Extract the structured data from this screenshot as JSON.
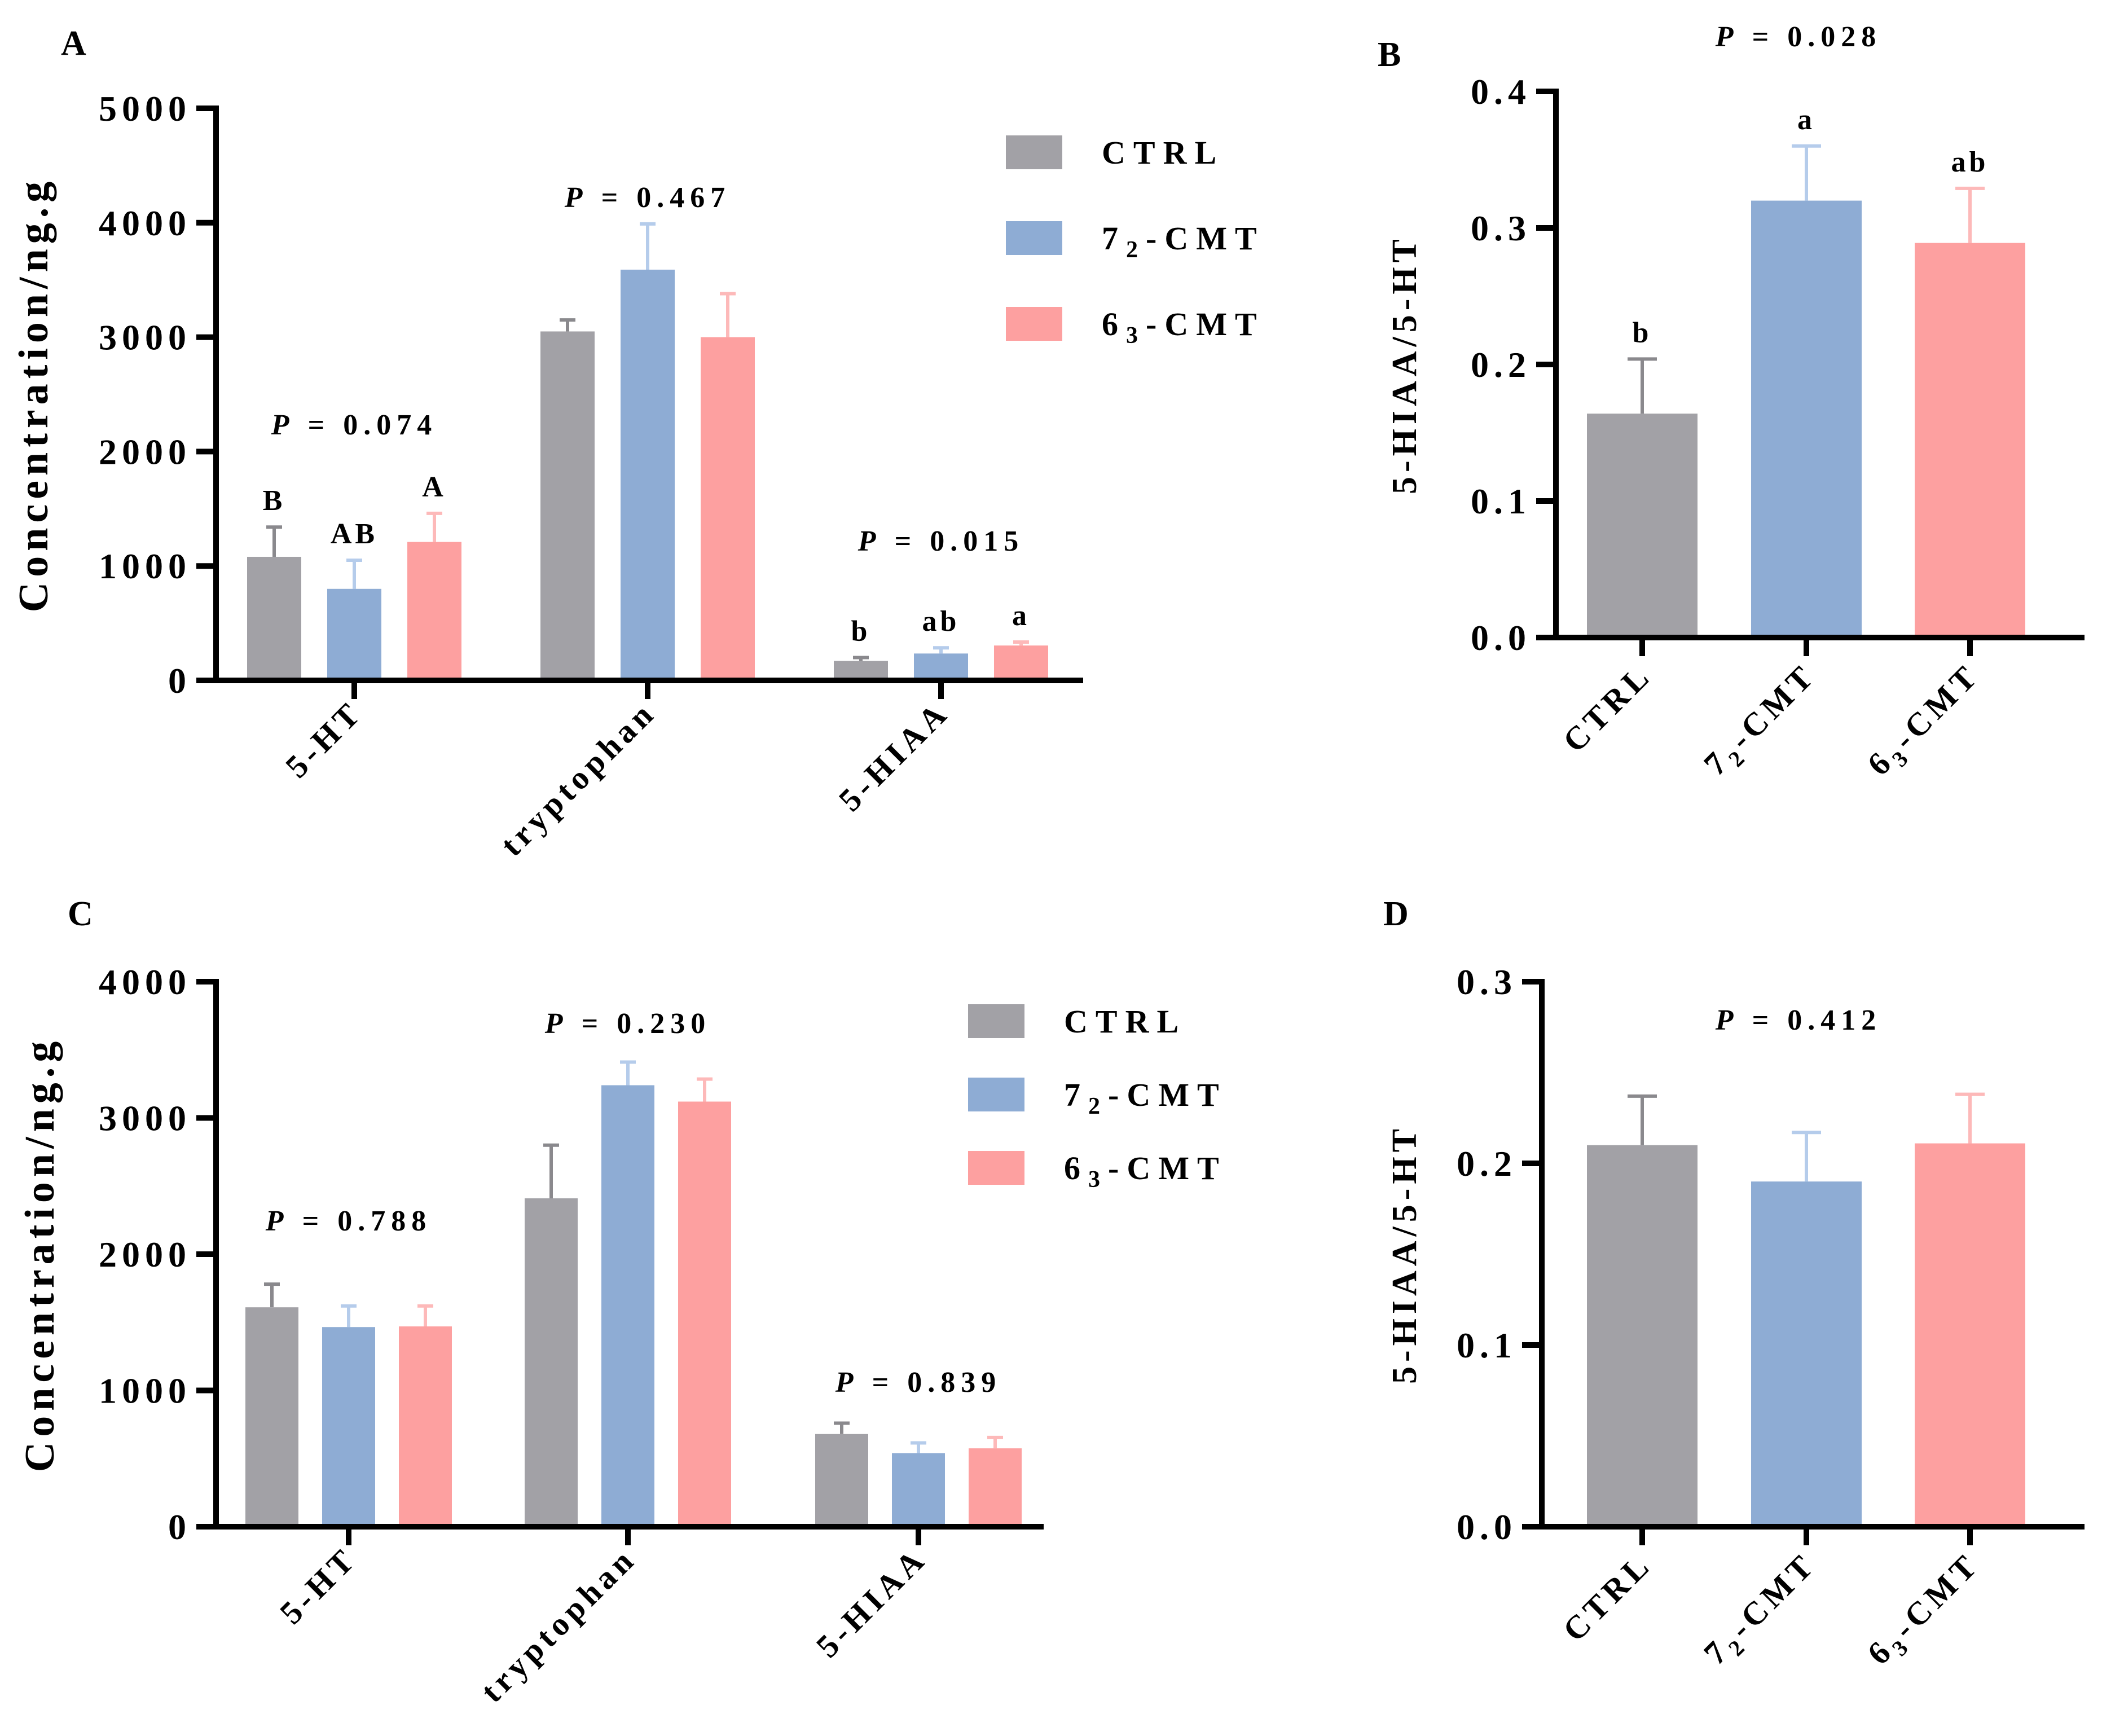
{
  "colors": {
    "CTRL": "#a2a1a6",
    "72-CMT": "#8eacd4",
    "63-CMT": "#fda0a0",
    "err_CTRL": "#8a898d",
    "err_72": "#b5cceb",
    "err_63": "#fdb9b9"
  },
  "legend": [
    {
      "key": "CTRL",
      "main": "CTRL",
      "sub": ""
    },
    {
      "key": "72-CMT",
      "main": "7",
      "sub": "2",
      "rest": "-CMT"
    },
    {
      "key": "63-CMT",
      "main": "6",
      "sub": "3",
      "rest": "-CMT"
    }
  ],
  "chart_data": [
    {
      "panel": "A",
      "type": "bar",
      "ylabel": "Concentration/ng.g",
      "ylim": [
        0,
        5000
      ],
      "yticks": [
        "0",
        "1000",
        "2000",
        "3000",
        "4000",
        "5000"
      ],
      "categories": [
        "5-HT",
        "tryptophan",
        "5-HIAA"
      ],
      "series": [
        {
          "name": "CTRL",
          "values": [
            1080,
            3050,
            170
          ],
          "errors": [
            260,
            100,
            30
          ]
        },
        {
          "name": "72-CMT",
          "values": [
            800,
            3590,
            235
          ],
          "errors": [
            250,
            400,
            50
          ]
        },
        {
          "name": "63-CMT",
          "values": [
            1210,
            3000,
            305
          ],
          "errors": [
            250,
            380,
            30
          ]
        }
      ],
      "p_values": [
        "P = 0.074",
        "P = 0.467",
        "P = 0.015"
      ],
      "letters": [
        [
          "B",
          "AB",
          "A"
        ],
        [
          "",
          "",
          ""
        ],
        [
          "b",
          "ab",
          "a"
        ]
      ]
    },
    {
      "panel": "B",
      "type": "bar",
      "ylabel": "5-HIAA/5-HT",
      "title": "P = 0.028",
      "ylim": [
        0,
        0.4
      ],
      "yticks": [
        "0.0",
        "0.1",
        "0.2",
        "0.3",
        "0.4"
      ],
      "categories": [
        "CTRL",
        "72-CMT",
        "63-CMT"
      ],
      "values": [
        0.164,
        0.32,
        0.289
      ],
      "errors": [
        0.04,
        0.04,
        0.04
      ],
      "letters": [
        "b",
        "a",
        "ab"
      ]
    },
    {
      "panel": "C",
      "type": "bar",
      "ylabel": "Concentration/ng.g",
      "ylim": [
        0,
        4000
      ],
      "yticks": [
        "0",
        "1000",
        "2000",
        "3000",
        "4000"
      ],
      "categories": [
        "5-HT",
        "tryptophan",
        "5-HIAA"
      ],
      "series": [
        {
          "name": "CTRL",
          "values": [
            1610,
            2410,
            680
          ],
          "errors": [
            170,
            390,
            80
          ]
        },
        {
          "name": "72-CMT",
          "values": [
            1465,
            3240,
            540
          ],
          "errors": [
            155,
            170,
            75
          ]
        },
        {
          "name": "63-CMT",
          "values": [
            1470,
            3120,
            575
          ],
          "errors": [
            150,
            165,
            80
          ]
        }
      ],
      "p_values": [
        "P = 0.788",
        "P = 0.230",
        "P = 0.839"
      ]
    },
    {
      "panel": "D",
      "type": "bar",
      "ylabel": "5-HIAA/5-HT",
      "title": "P = 0.412",
      "ylim": [
        0,
        0.3
      ],
      "yticks": [
        "0.0",
        "0.1",
        "0.2",
        "0.3"
      ],
      "categories": [
        "CTRL",
        "72-CMT",
        "63-CMT"
      ],
      "values": [
        0.21,
        0.19,
        0.211
      ],
      "errors": [
        0.027,
        0.027,
        0.027
      ]
    }
  ]
}
